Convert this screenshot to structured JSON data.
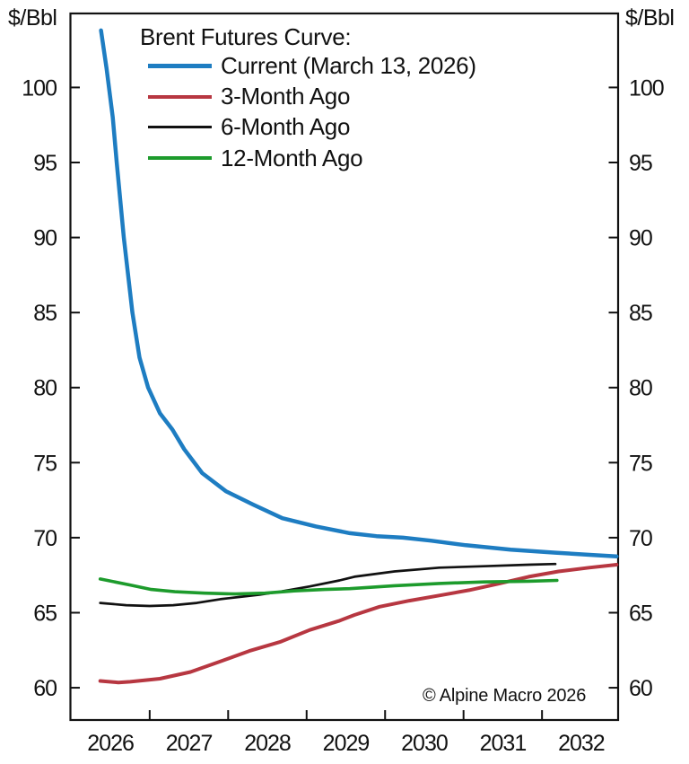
{
  "chart_data": {
    "type": "line",
    "title": "Brent Futures Curve:",
    "unit_label_left": "$/Bbl",
    "unit_label_right": "$/Bbl",
    "copyright": "© Alpine Macro 2026",
    "grid": false,
    "legend_position": "top-left-inside",
    "x_axis": {
      "range": [
        2025.99,
        2032.97
      ],
      "boundary_tick_years": [
        2027,
        2028,
        2029,
        2030,
        2031,
        2032
      ],
      "label_years": [
        "2026",
        "2027",
        "2028",
        "2029",
        "2030",
        "2031",
        "2032"
      ]
    },
    "y_axis": {
      "range": [
        57.85,
        104.93
      ],
      "ticks": [
        60,
        65,
        70,
        75,
        80,
        85,
        90,
        95,
        100
      ]
    },
    "series": [
      {
        "name": "Current (March 13, 2026)",
        "color": "#1e7dc2",
        "line_width": 4.5,
        "points": [
          [
            2026.38,
            103.8
          ],
          [
            2026.45,
            101.3
          ],
          [
            2026.53,
            98.0
          ],
          [
            2026.58,
            95.0
          ],
          [
            2026.67,
            90.0
          ],
          [
            2026.78,
            85.0
          ],
          [
            2026.87,
            82.0
          ],
          [
            2026.98,
            80.0
          ],
          [
            2027.13,
            78.3
          ],
          [
            2027.29,
            77.2
          ],
          [
            2027.44,
            75.9
          ],
          [
            2027.67,
            74.3
          ],
          [
            2027.97,
            73.1
          ],
          [
            2028.32,
            72.2
          ],
          [
            2028.69,
            71.3
          ],
          [
            2029.12,
            70.75
          ],
          [
            2029.55,
            70.3
          ],
          [
            2029.89,
            70.1
          ],
          [
            2030.23,
            70.0
          ],
          [
            2030.58,
            69.8
          ],
          [
            2031.03,
            69.5
          ],
          [
            2031.6,
            69.2
          ],
          [
            2032.17,
            69.0
          ],
          [
            2032.63,
            68.85
          ],
          [
            2032.95,
            68.75
          ]
        ]
      },
      {
        "name": "3-Month Ago",
        "color": "#b73741",
        "line_width": 4,
        "points": [
          [
            2026.37,
            60.45
          ],
          [
            2026.6,
            60.35
          ],
          [
            2026.75,
            60.4
          ],
          [
            2027.13,
            60.6
          ],
          [
            2027.52,
            61.05
          ],
          [
            2027.9,
            61.75
          ],
          [
            2028.27,
            62.45
          ],
          [
            2028.66,
            63.05
          ],
          [
            2029.04,
            63.85
          ],
          [
            2029.41,
            64.45
          ],
          [
            2029.61,
            64.85
          ],
          [
            2029.93,
            65.4
          ],
          [
            2030.31,
            65.8
          ],
          [
            2030.69,
            66.15
          ],
          [
            2031.07,
            66.5
          ],
          [
            2031.46,
            66.95
          ],
          [
            2031.83,
            67.4
          ],
          [
            2032.21,
            67.75
          ],
          [
            2032.6,
            68.0
          ],
          [
            2032.95,
            68.2
          ]
        ]
      },
      {
        "name": "6-Month Ago",
        "color": "#111111",
        "line_width": 2.7,
        "points": [
          [
            2026.37,
            65.65
          ],
          [
            2026.7,
            65.5
          ],
          [
            2027.0,
            65.45
          ],
          [
            2027.3,
            65.5
          ],
          [
            2027.6,
            65.65
          ],
          [
            2027.9,
            65.9
          ],
          [
            2028.15,
            66.05
          ],
          [
            2028.4,
            66.2
          ],
          [
            2028.66,
            66.4
          ],
          [
            2029.04,
            66.75
          ],
          [
            2029.42,
            67.15
          ],
          [
            2029.61,
            67.4
          ],
          [
            2030.12,
            67.75
          ],
          [
            2030.69,
            68.0
          ],
          [
            2031.26,
            68.1
          ],
          [
            2031.83,
            68.2
          ],
          [
            2032.17,
            68.25
          ]
        ]
      },
      {
        "name": "12-Month Ago",
        "color": "#1d9b2c",
        "line_width": 3.6,
        "points": [
          [
            2026.37,
            67.25
          ],
          [
            2026.75,
            66.85
          ],
          [
            2027.02,
            66.55
          ],
          [
            2027.32,
            66.4
          ],
          [
            2027.7,
            66.3
          ],
          [
            2028.09,
            66.25
          ],
          [
            2028.47,
            66.3
          ],
          [
            2028.84,
            66.45
          ],
          [
            2029.23,
            66.55
          ],
          [
            2029.55,
            66.6
          ],
          [
            2030.12,
            66.8
          ],
          [
            2030.69,
            66.95
          ],
          [
            2031.26,
            67.05
          ],
          [
            2031.83,
            67.1
          ],
          [
            2032.19,
            67.15
          ]
        ]
      }
    ],
    "axis_color": "#111111"
  }
}
